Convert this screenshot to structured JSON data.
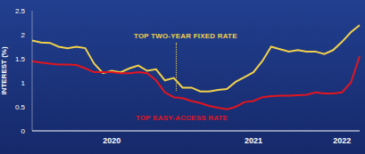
{
  "chart_data": {
    "type": "line",
    "y_label": "INTEREST (%)",
    "categories": [
      null,
      null,
      null,
      null,
      null,
      null,
      null,
      null,
      null,
      "2020",
      null,
      null,
      null,
      null,
      null,
      null,
      null,
      null,
      null,
      null,
      null,
      null,
      null,
      null,
      null,
      "2021",
      null,
      null,
      null,
      null,
      null,
      null,
      null,
      null,
      null,
      "2022",
      null,
      null
    ],
    "series": [
      {
        "name": "TOP TWO-YEAR FIXED RATE",
        "color": "#f2d24b",
        "values": [
          1.88,
          1.84,
          1.83,
          1.75,
          1.72,
          1.75,
          1.72,
          1.4,
          1.2,
          1.25,
          1.22,
          1.3,
          1.36,
          1.25,
          1.28,
          1.05,
          1.1,
          0.9,
          0.9,
          0.82,
          0.82,
          0.85,
          0.87,
          1.02,
          1.12,
          1.22,
          1.45,
          1.75,
          1.7,
          1.65,
          1.68,
          1.65,
          1.65,
          1.6,
          1.68,
          1.85,
          2.05,
          2.2
        ]
      },
      {
        "name": "TOP EASY-ACCESS RATE",
        "color": "#e3151f",
        "values": [
          1.45,
          1.42,
          1.4,
          1.38,
          1.38,
          1.37,
          1.3,
          1.22,
          1.22,
          1.22,
          1.2,
          1.2,
          1.22,
          1.2,
          1.05,
          0.8,
          0.7,
          0.68,
          0.62,
          0.58,
          0.52,
          0.48,
          0.45,
          0.5,
          0.6,
          0.62,
          0.7,
          0.72,
          0.73,
          0.73,
          0.74,
          0.75,
          0.8,
          0.78,
          0.78,
          0.8,
          1.0,
          1.55
        ]
      }
    ],
    "ylim": [
      0,
      2.5
    ],
    "yticks": [
      0,
      0.5,
      1,
      1.5,
      2,
      2.5
    ],
    "grid": false,
    "legend": false
  }
}
